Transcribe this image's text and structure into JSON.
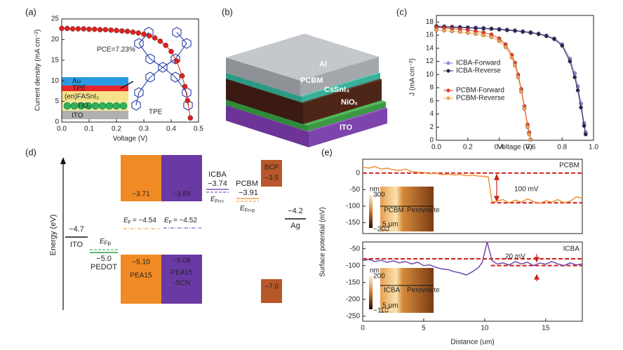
{
  "chart_data": [
    {
      "type": "line",
      "panel_label": "(a)",
      "xlabel": "Voltage (V)",
      "ylabel": "Current density (mA cm⁻²)",
      "xlim": [
        0,
        0.5
      ],
      "ylim": [
        0,
        25
      ],
      "xticks": [
        {
          "value": 0,
          "label": "0.0"
        },
        0.1,
        0.2,
        0.3,
        0.4,
        0.5
      ],
      "yticks": [
        0,
        5,
        10,
        15,
        20,
        25
      ],
      "markers": true,
      "annotations": [
        "PCE=7.23%"
      ],
      "inset": {
        "layers": [
          "Au",
          "TPE",
          "(en)FASnI₃",
          "TiO₂",
          "ITO"
        ],
        "molecule": "TPE"
      },
      "series": [
        {
          "color": "#e02020",
          "x": [
            0,
            0.02,
            0.04,
            0.06,
            0.08,
            0.1,
            0.12,
            0.14,
            0.16,
            0.18,
            0.2,
            0.22,
            0.24,
            0.26,
            0.28,
            0.3,
            0.32,
            0.34,
            0.36,
            0.38,
            0.4,
            0.42,
            0.44,
            0.45,
            0.46,
            0.47
          ],
          "values": [
            22.7,
            22.7,
            22.6,
            22.6,
            22.6,
            22.5,
            22.5,
            22.4,
            22.4,
            22.3,
            22.2,
            22.1,
            22.0,
            21.8,
            21.6,
            21.3,
            20.9,
            20.4,
            19.6,
            18.6,
            17.1,
            14.8,
            11.2,
            8.6,
            5.2,
            1.0
          ]
        }
      ]
    },
    {
      "type": "line",
      "panel_label": "(c)",
      "xlabel": "Voltage (V)",
      "ylabel": "J (mA cm⁻²)",
      "xlim": [
        0,
        1.0
      ],
      "ylim": [
        0,
        19
      ],
      "xticks": [
        {
          "value": 0,
          "label": "0.0"
        },
        0.2,
        0.4,
        0.6,
        0.8,
        {
          "value": 1,
          "label": "1.0"
        }
      ],
      "yticks": [
        0,
        2,
        4,
        6,
        8,
        10,
        12,
        14,
        16,
        18
      ],
      "markers": true,
      "legend": "center left",
      "series": [
        {
          "name": "ICBA-Forward",
          "color": "#9d80d6",
          "x": [
            0,
            0.05,
            0.1,
            0.15,
            0.2,
            0.25,
            0.3,
            0.35,
            0.4,
            0.45,
            0.5,
            0.55,
            0.6,
            0.65,
            0.7,
            0.75,
            0.8,
            0.85,
            0.88,
            0.9,
            0.92,
            0.94,
            0.95
          ],
          "values": [
            17.4,
            17.35,
            17.3,
            17.25,
            17.2,
            17.15,
            17.1,
            17.0,
            16.95,
            16.85,
            16.75,
            16.6,
            16.45,
            16.25,
            15.95,
            15.5,
            14.6,
            12.4,
            10.2,
            8.2,
            5.6,
            2.6,
            1.2
          ]
        },
        {
          "name": "ICBA-Reverse",
          "color": "#2b2455",
          "x": [
            0,
            0.05,
            0.1,
            0.15,
            0.2,
            0.25,
            0.3,
            0.35,
            0.4,
            0.45,
            0.5,
            0.55,
            0.6,
            0.65,
            0.7,
            0.75,
            0.8,
            0.85,
            0.88,
            0.9,
            0.92,
            0.94,
            0.95
          ],
          "values": [
            17.3,
            17.25,
            17.2,
            17.15,
            17.1,
            17.05,
            17.0,
            16.95,
            16.85,
            16.75,
            16.65,
            16.5,
            16.35,
            16.15,
            15.85,
            15.4,
            14.4,
            12.0,
            9.6,
            7.6,
            5.0,
            2.2,
            0.9
          ]
        },
        {
          "name": "PCBM-Forward",
          "color": "#e63b2a",
          "x": [
            0,
            0.05,
            0.1,
            0.15,
            0.2,
            0.25,
            0.3,
            0.35,
            0.4,
            0.44,
            0.48,
            0.5,
            0.52,
            0.54,
            0.56,
            0.58,
            0.59,
            0.6
          ],
          "values": [
            17.2,
            17.1,
            17.0,
            16.9,
            16.8,
            16.6,
            16.4,
            16.1,
            15.5,
            14.6,
            13.0,
            11.8,
            10.0,
            7.8,
            5.2,
            2.4,
            1.2,
            0.1
          ]
        },
        {
          "name": "PCBM-Reverse",
          "color": "#f5a24c",
          "x": [
            0,
            0.05,
            0.1,
            0.15,
            0.2,
            0.25,
            0.3,
            0.35,
            0.4,
            0.44,
            0.48,
            0.5,
            0.52,
            0.54,
            0.56,
            0.58,
            0.59,
            0.6
          ],
          "values": [
            16.8,
            16.7,
            16.6,
            16.5,
            16.35,
            16.2,
            16.0,
            15.7,
            15.1,
            14.2,
            12.6,
            11.4,
            9.6,
            7.4,
            4.8,
            2.0,
            0.9,
            0.1
          ]
        }
      ]
    },
    {
      "type": "line",
      "panel_label": "(e)",
      "ylabel": "Surface potential (mV)",
      "xlim": [
        0,
        18
      ],
      "ylim": [
        -183,
        42
      ],
      "yticks": [
        0,
        -50,
        -100,
        -150
      ],
      "annotations": [
        "PCBM",
        "100 mV"
      ],
      "inset": {
        "unit": "nm",
        "max": "300",
        "min": "−200",
        "left": "PCBM",
        "right": "Perovskite",
        "scale": "5 μm"
      },
      "reference_lines": [
        {
          "y": 0,
          "x": [
            0,
            18
          ]
        },
        {
          "y": -90,
          "x": [
            10.5,
            18
          ]
        }
      ],
      "series": [
        {
          "color": "#f08a2c",
          "x": [
            0,
            0.5,
            1,
            1.5,
            2,
            2.5,
            3,
            3.5,
            4,
            4.5,
            5,
            5.5,
            6,
            6.5,
            7,
            7.5,
            8,
            8.5,
            9,
            9.5,
            10,
            10.3,
            10.6,
            11,
            11.5,
            12,
            12.5,
            13,
            13.5,
            14,
            14.5,
            15,
            15.5,
            16,
            16.5,
            17,
            17.5,
            18
          ],
          "values": [
            18,
            15,
            20,
            12,
            15,
            10,
            8,
            12,
            5,
            3,
            2,
            -2,
            0,
            -5,
            -3,
            -6,
            -4,
            -8,
            -6,
            -9,
            -10,
            -12,
            -88,
            -85,
            -80,
            -90,
            -82,
            -88,
            -78,
            -86,
            -92,
            -84,
            -88,
            -80,
            -90,
            -85,
            -72,
            -76
          ]
        }
      ]
    },
    {
      "type": "line",
      "xlabel": "Distance (um)",
      "xlim": [
        0,
        18
      ],
      "ylim": [
        -265,
        -30
      ],
      "xticks": [
        0,
        5,
        10,
        15
      ],
      "yticks": [
        -50,
        -100,
        -150,
        -200,
        -250
      ],
      "annotations": [
        "ICBA",
        "20 mV"
      ],
      "inset": {
        "unit": "nm",
        "max": "200",
        "min": "−110",
        "left": "ICBA",
        "right": "Perovskite",
        "scale": "5 μm"
      },
      "reference_lines": [
        {
          "y": -80,
          "x": [
            0,
            18
          ]
        },
        {
          "y": -100,
          "x": [
            10.5,
            18
          ]
        }
      ],
      "series": [
        {
          "color": "#6a3fa8",
          "x": [
            0,
            0.5,
            1,
            1.5,
            2,
            2.5,
            3,
            3.5,
            4,
            4.5,
            5,
            5.5,
            6,
            6.5,
            7,
            7.5,
            8,
            8.5,
            9,
            9.5,
            9.8,
            10.2,
            10.6,
            11,
            11.5,
            12,
            12.5,
            13,
            13.5,
            14,
            14.5,
            15,
            15.5,
            16,
            16.5,
            17,
            17.5,
            18
          ],
          "values": [
            -85,
            -82,
            -88,
            -84,
            -90,
            -86,
            -92,
            -88,
            -95,
            -90,
            -100,
            -98,
            -105,
            -110,
            -112,
            -118,
            -122,
            -128,
            -118,
            -105,
            -90,
            -30,
            -85,
            -95,
            -92,
            -98,
            -88,
            -95,
            -90,
            -100,
            -92,
            -96,
            -88,
            -95,
            -100,
            -92,
            -98,
            -95
          ]
        }
      ]
    }
  ],
  "panel_b": {
    "panel_label": "(b)",
    "layers": [
      "Al",
      "PCBM",
      "CsSnI₃",
      "NiOₓ",
      "ITO"
    ]
  },
  "panel_d": {
    "panel_label": "(d)",
    "axis_label": "Energy (eV)",
    "ito": {
      "value": "−4.7",
      "name": "ITO"
    },
    "pedot": {
      "symbol": "E",
      "subscript": "Fp",
      "value": "−5.0",
      "name": "PEDOT"
    },
    "pea15": {
      "lumo": "−3.71",
      "homo": "−5.10",
      "name": "PEA15",
      "ef_symbol": "E",
      "ef_subscript": "F",
      "ef_value": "= −4.54"
    },
    "pea15_scn": {
      "lumo": "−3.69",
      "homo": "−5.08",
      "name": [
        "PEA15",
        "-SCN"
      ],
      "ef_symbol": "E",
      "ef_subscript": "F",
      "ef_value": "= −4.52"
    },
    "icba": {
      "name": "ICBA",
      "value": "−3.74",
      "symbol": "E",
      "subscript": "Fn-i"
    },
    "pcbm": {
      "name": "PCBM",
      "value": "−3.91",
      "symbol": "E",
      "subscript": "Fn-p"
    },
    "bcp": {
      "name": "BCP",
      "lumo": "−3.5",
      "homo": "−7.0"
    },
    "ag": {
      "value": "−4.2",
      "name": "Ag"
    }
  }
}
